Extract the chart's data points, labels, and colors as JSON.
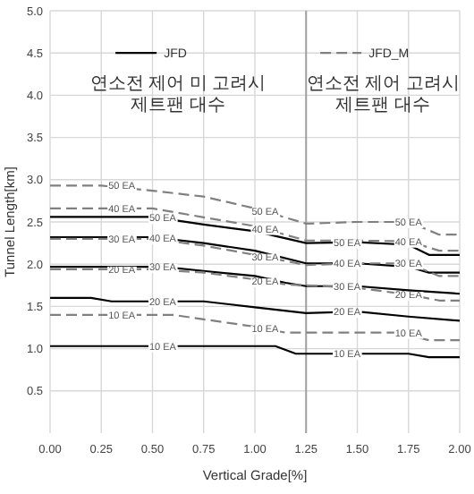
{
  "chart_data": {
    "type": "line",
    "xlabel": "Vertical Grade[%]",
    "ylabel": "Tunnel Length[km]",
    "xlim": [
      0,
      2
    ],
    "xticks": [
      {
        "value": 0,
        "label": "0.00"
      },
      {
        "value": 0.25,
        "label": "0.25"
      },
      {
        "value": 0.5,
        "label": "0.50"
      },
      {
        "value": 0.75,
        "label": "0.75"
      },
      {
        "value": 1,
        "label": "1.00"
      },
      {
        "value": 1.25,
        "label": "1.25"
      },
      {
        "value": 1.5,
        "label": "1.50"
      },
      {
        "value": 1.75,
        "label": "1.75"
      },
      {
        "value": 2,
        "label": "2.00"
      }
    ],
    "ylim": [
      0,
      5
    ],
    "yticks": [
      {
        "value": 0.5,
        "label": "0.5"
      },
      {
        "value": 1,
        "label": "1.0"
      },
      {
        "value": 1.5,
        "label": "1.5"
      },
      {
        "value": 2,
        "label": "2.0"
      },
      {
        "value": 2.5,
        "label": "2.5"
      },
      {
        "value": 3,
        "label": "3.0"
      },
      {
        "value": 3.5,
        "label": "3.5"
      },
      {
        "value": 4,
        "label": "4.0"
      },
      {
        "value": 4.5,
        "label": "4.5"
      },
      {
        "value": 5,
        "label": "5.0"
      }
    ],
    "grid": true,
    "ref_lines": [
      {
        "axis": "x",
        "value": 1.25,
        "color": "#a0a0a0"
      }
    ],
    "series": [
      {
        "color": "#000000",
        "line_style": "solid",
        "x": [
          0,
          1.1,
          1.2,
          1.75,
          1.85,
          2.0
        ],
        "values": [
          1.03,
          1.03,
          0.94,
          0.94,
          0.9,
          0.9
        ]
      },
      {
        "color": "#000000",
        "line_style": "solid",
        "x": [
          0,
          0.2,
          0.3,
          0.75,
          1.0,
          1.25,
          1.5,
          1.75,
          2.0
        ],
        "values": [
          1.6,
          1.6,
          1.56,
          1.56,
          1.49,
          1.42,
          1.44,
          1.38,
          1.33
        ]
      },
      {
        "color": "#000000",
        "line_style": "solid",
        "x": [
          0,
          0.55,
          0.75,
          1.0,
          1.15,
          1.25,
          1.5,
          1.75,
          2.0
        ],
        "values": [
          1.97,
          1.97,
          1.92,
          1.86,
          1.78,
          1.74,
          1.74,
          1.69,
          1.65
        ]
      },
      {
        "color": "#000000",
        "line_style": "solid",
        "x": [
          0,
          0.5,
          0.75,
          1.0,
          1.25,
          1.5,
          1.75,
          1.85,
          2.0
        ],
        "values": [
          2.32,
          2.32,
          2.25,
          2.16,
          2.01,
          2.01,
          1.97,
          1.9,
          1.9
        ]
      },
      {
        "color": "#000000",
        "line_style": "solid",
        "x": [
          0,
          0.5,
          0.75,
          1.0,
          1.25,
          1.5,
          1.75,
          1.85,
          2.0
        ],
        "values": [
          2.56,
          2.56,
          2.47,
          2.39,
          2.25,
          2.26,
          2.23,
          2.11,
          2.11
        ]
      },
      {
        "color": "#808080",
        "line_style": "dashed",
        "x": [
          0,
          0.6,
          1.0,
          1.15,
          1.7,
          1.85,
          2.0
        ],
        "values": [
          1.4,
          1.4,
          1.26,
          1.19,
          1.19,
          1.1,
          1.1
        ]
      },
      {
        "color": "#808080",
        "line_style": "dashed",
        "x": [
          0,
          0.5,
          0.75,
          1.0,
          1.15,
          1.25,
          1.5,
          1.75,
          1.9,
          2.0
        ],
        "values": [
          1.94,
          1.94,
          1.9,
          1.82,
          1.76,
          1.75,
          1.72,
          1.64,
          1.57,
          1.57
        ]
      },
      {
        "color": "#808080",
        "line_style": "dashed",
        "x": [
          0,
          0.5,
          0.75,
          1.0,
          1.25,
          1.5,
          1.75,
          1.9,
          2.0
        ],
        "values": [
          2.3,
          2.3,
          2.22,
          2.11,
          1.99,
          2.01,
          2.01,
          1.86,
          1.86
        ]
      },
      {
        "color": "#808080",
        "line_style": "dashed",
        "x": [
          0,
          0.5,
          1.0,
          1.25,
          1.5,
          1.75,
          1.9,
          2.0
        ],
        "values": [
          2.66,
          2.66,
          2.45,
          2.28,
          2.28,
          2.27,
          2.16,
          2.16
        ]
      },
      {
        "color": "#808080",
        "line_style": "dashed",
        "x": [
          0,
          0.25,
          0.5,
          0.75,
          1.0,
          1.25,
          1.5,
          1.75,
          1.9,
          2.0
        ],
        "values": [
          2.93,
          2.93,
          2.87,
          2.8,
          2.66,
          2.48,
          2.5,
          2.5,
          2.35,
          2.35
        ]
      }
    ],
    "annotations": [
      "JFD",
      "JFD_M",
      "연소전 제어 미 고려시\n제트팬 대수",
      "연소전 제어 고려시\n제트팬 대수",
      {
        "text": "10 EA",
        "x": 0.55,
        "y": 1.03
      },
      {
        "text": "10 EA",
        "x": 1.45,
        "y": 0.94
      },
      {
        "text": "20 EA",
        "x": 0.55,
        "y": 1.56
      },
      {
        "text": "20 EA",
        "x": 1.45,
        "y": 1.44
      },
      {
        "text": "30 EA",
        "x": 0.55,
        "y": 1.97
      },
      {
        "text": "30 EA",
        "x": 1.45,
        "y": 1.74
      },
      {
        "text": "40 EA",
        "x": 0.55,
        "y": 2.31
      },
      {
        "text": "40 EA",
        "x": 1.45,
        "y": 2.01
      },
      {
        "text": "50 EA",
        "x": 0.55,
        "y": 2.55
      },
      {
        "text": "50 EA",
        "x": 1.45,
        "y": 2.26
      },
      {
        "text": "10 EA",
        "x": 0.35,
        "y": 1.4
      },
      {
        "text": "10 EA",
        "x": 1.05,
        "y": 1.24
      },
      {
        "text": "10 EA",
        "x": 1.75,
        "y": 1.19
      },
      {
        "text": "20 EA",
        "x": 0.35,
        "y": 1.94
      },
      {
        "text": "20 EA",
        "x": 1.05,
        "y": 1.8
      },
      {
        "text": "20 EA",
        "x": 1.75,
        "y": 1.64
      },
      {
        "text": "30 EA",
        "x": 0.35,
        "y": 2.3
      },
      {
        "text": "30 EA",
        "x": 1.05,
        "y": 2.09
      },
      {
        "text": "30 EA",
        "x": 1.75,
        "y": 2.01
      },
      {
        "text": "40 EA",
        "x": 0.35,
        "y": 2.66
      },
      {
        "text": "40 EA",
        "x": 1.05,
        "y": 2.42
      },
      {
        "text": "40 EA",
        "x": 1.75,
        "y": 2.27
      },
      {
        "text": "50 EA",
        "x": 0.35,
        "y": 2.93
      },
      {
        "text": "50 EA",
        "x": 1.05,
        "y": 2.63
      },
      {
        "text": "50 EA",
        "x": 1.75,
        "y": 2.5
      }
    ]
  }
}
